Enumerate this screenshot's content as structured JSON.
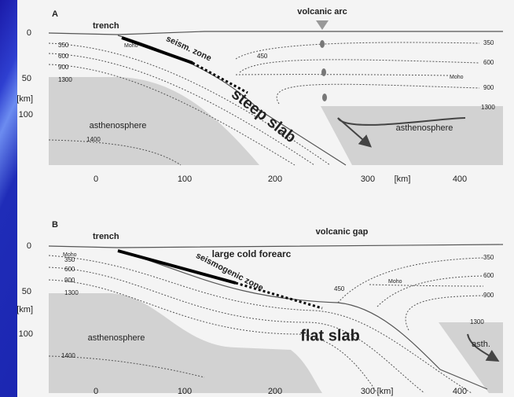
{
  "panels": [
    {
      "letter": "A",
      "trench": "trench",
      "top_label": "volcanic arc",
      "seismic_label": "seism. zone",
      "slab_label": "steep slab",
      "asthenosphere_left": "asthenosphere",
      "asthenosphere_right": "asthenosphere",
      "moho_left": "Moho",
      "moho_right": "Moho",
      "isotherms_left": [
        "350",
        "600",
        "900",
        "1300",
        "1400"
      ],
      "isotherm_mid": "450",
      "isotherms_right": [
        "350",
        "600",
        "900",
        "1300"
      ],
      "y_axis": [
        "0",
        "50",
        "[km]",
        "100"
      ],
      "x_axis": [
        "0",
        "100",
        "200",
        "300",
        "[km]",
        "400"
      ]
    },
    {
      "letter": "B",
      "trench": "trench",
      "top_label": "volcanic gap",
      "forearc_label": "large cold forearc",
      "seismic_label": "seismogenic zone",
      "slab_label": "flat slab",
      "asthenosphere_left": "asthenosphere",
      "asthenosphere_right": "asth.",
      "moho_left": "Moho",
      "moho_right": "Moho",
      "isotherms_left": [
        "350",
        "600",
        "900",
        "1300",
        "1400"
      ],
      "isotherm_mid": "450",
      "isotherms_right": [
        "350",
        "600",
        "900",
        "1300"
      ],
      "y_axis": [
        "0",
        "50",
        "[km]",
        "100"
      ],
      "x_axis": [
        "0",
        "100",
        "200",
        "300",
        "[km]",
        "400"
      ]
    }
  ]
}
